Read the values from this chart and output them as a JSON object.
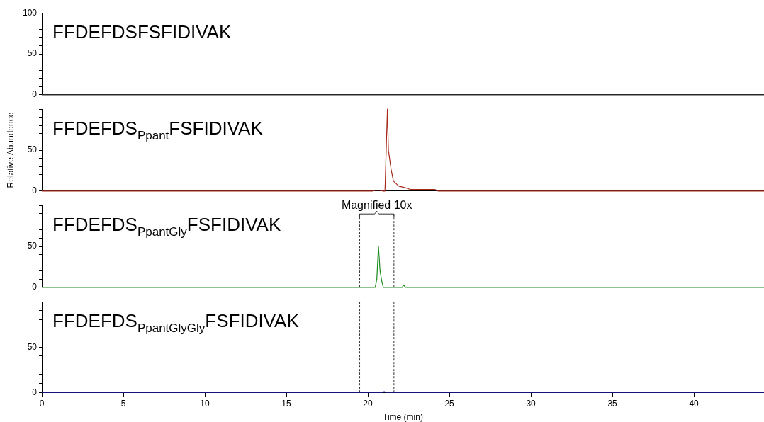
{
  "chart_data": [
    {
      "type": "line",
      "title": "FFDEFDSFSFIDIVAK",
      "color": "#333333",
      "x": [
        0,
        44.3
      ],
      "values": [
        0,
        0
      ],
      "xlim": [
        0,
        44.3
      ],
      "ylim": [
        0,
        100
      ],
      "yticks": [
        0,
        {
          "value": 10,
          "label": null
        },
        {
          "value": 20,
          "label": null
        },
        {
          "value": 30,
          "label": null
        },
        {
          "value": 40,
          "label": null
        },
        50,
        {
          "value": 60,
          "label": null
        },
        {
          "value": 70,
          "label": null
        },
        {
          "value": 80,
          "label": null
        },
        {
          "value": 90,
          "label": null
        },
        100
      ],
      "tick_labels": "y"
    },
    {
      "type": "line",
      "title": "FFDEFDS$_{Ppant}$FSFIDIVAK",
      "ylabel": "Relative Abundance",
      "color": "#a52a1a",
      "x": [
        0,
        20.3,
        20.45,
        20.6,
        20.75,
        20.9,
        21.05,
        21.2,
        21.26,
        21.43,
        21.57,
        21.9,
        22.3,
        22.6,
        23.0,
        24.1,
        24.3,
        44.3
      ],
      "values": [
        0,
        0,
        1,
        1,
        1,
        0,
        0,
        100,
        50,
        26,
        12,
        6,
        4,
        2,
        2,
        2,
        0,
        0
      ],
      "xlim": [
        0,
        44.3
      ],
      "ylim": [
        0,
        100
      ],
      "yticks": [
        0,
        {
          "value": 10,
          "label": null
        },
        {
          "value": 20,
          "label": null
        },
        {
          "value": 30,
          "label": null
        },
        {
          "value": 40,
          "label": null
        },
        50,
        {
          "value": 60,
          "label": null
        },
        {
          "value": 70,
          "label": null
        },
        {
          "value": 80,
          "label": null
        },
        {
          "value": 90,
          "label": null
        },
        {
          "value": 100,
          "label": null
        }
      ],
      "tick_labels": "y"
    },
    {
      "type": "line",
      "title": "FFDEFDS$_{PpantGly}$FSFIDIVAK",
      "color": "#1a8a1a",
      "x": [
        0,
        20.45,
        20.55,
        20.65,
        20.75,
        20.85,
        20.95,
        22.1,
        22.2,
        22.3,
        44.3
      ],
      "values": [
        0,
        0,
        10,
        50,
        20,
        8,
        0,
        0,
        3,
        0,
        0
      ],
      "xlim": [
        0,
        44.3
      ],
      "ylim": [
        0,
        100
      ],
      "yticks": [
        0,
        {
          "value": 10,
          "label": null
        },
        {
          "value": 20,
          "label": null
        },
        {
          "value": 30,
          "label": null
        },
        {
          "value": 40,
          "label": null
        },
        50,
        {
          "value": 60,
          "label": null
        },
        {
          "value": 70,
          "label": null
        },
        {
          "value": 80,
          "label": null
        },
        {
          "value": 90,
          "label": null
        },
        {
          "value": 100,
          "label": null
        }
      ],
      "tick_labels": "y",
      "annotations": [
        "Magnified 10x"
      ],
      "ref_lines": [
        {
          "axis": "x",
          "value": 19.5,
          "color": "#333333",
          "line_style": "dashed"
        },
        {
          "axis": "x",
          "value": 21.6,
          "color": "#333333",
          "line_style": "dashed"
        }
      ]
    },
    {
      "type": "line",
      "title": "FFDEFDS$_{PpantGlyGly}$FSFIDIVAK",
      "xlabel": "Time (min)",
      "color": "#1a1aa0",
      "x": [
        0,
        20.9,
        21.0,
        21.1,
        44.3
      ],
      "values": [
        0,
        0,
        1,
        0,
        0
      ],
      "xlim": [
        0,
        44.3
      ],
      "xticks": [
        0,
        5,
        10,
        15,
        20,
        25,
        30,
        35,
        40
      ],
      "ylim": [
        0,
        100
      ],
      "yticks": [
        0,
        {
          "value": 10,
          "label": null
        },
        {
          "value": 20,
          "label": null
        },
        {
          "value": 30,
          "label": null
        },
        {
          "value": 40,
          "label": null
        },
        50,
        {
          "value": 60,
          "label": null
        },
        {
          "value": 70,
          "label": null
        },
        {
          "value": 80,
          "label": null
        },
        {
          "value": 90,
          "label": null
        },
        {
          "value": 100,
          "label": null
        }
      ],
      "ref_lines": [
        {
          "axis": "x",
          "value": 19.5,
          "color": "#333333",
          "line_style": "dashed"
        },
        {
          "axis": "x",
          "value": 21.6,
          "color": "#333333",
          "line_style": "dashed"
        }
      ]
    }
  ]
}
